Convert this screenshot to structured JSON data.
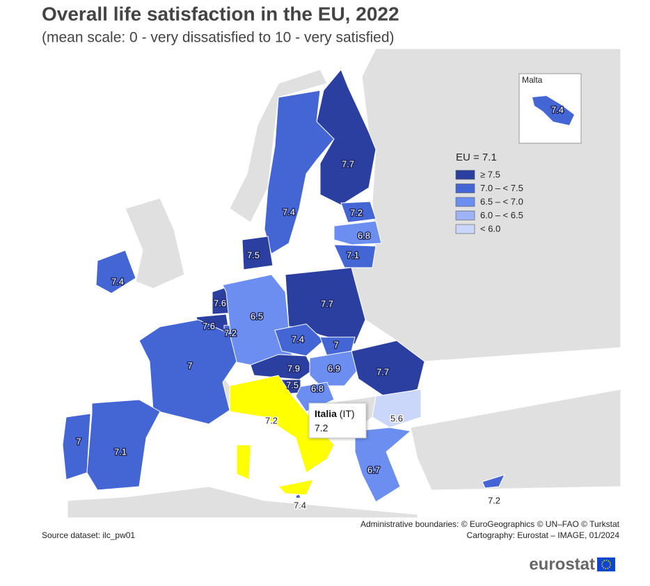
{
  "header": {
    "title": "Overall life satisfaction in the EU, 2022",
    "subtitle": "(mean scale: 0 - very dissatisfied to 10 - very satisfied)"
  },
  "legend": {
    "title": "EU = 7.1",
    "classes": [
      {
        "label": "≥ 7.5",
        "color": "#2b3fa0"
      },
      {
        "label": "7.0 – < 7.5",
        "color": "#4466d4"
      },
      {
        "label": "6.5 – < 7.0",
        "color": "#6b8ef0"
      },
      {
        "label": "6.0 – < 6.5",
        "color": "#9db3f5"
      },
      {
        "label": "< 6.0",
        "color": "#cbd7fa"
      }
    ]
  },
  "regions": [
    {
      "value": 7.7,
      "color": "#2b3fa0"
    },
    {
      "value": 7.4,
      "color": "#4466d4"
    },
    {
      "value": 7.2,
      "color": "#4466d4"
    },
    {
      "value": 6.8,
      "color": "#6b8ef0"
    },
    {
      "value": 7.1,
      "color": "#4466d4"
    },
    {
      "value": 7.5,
      "color": "#2b3fa0"
    },
    {
      "value": 7.4,
      "color": "#4466d4"
    },
    {
      "value": 7.6,
      "color": "#2b3fa0"
    },
    {
      "value": 7.6,
      "color": "#2b3fa0"
    },
    {
      "value": 7.2,
      "color": "#4466d4"
    },
    {
      "value": 6.5,
      "color": "#6b8ef0"
    },
    {
      "value": 7.7,
      "color": "#2b3fa0"
    },
    {
      "value": 7.4,
      "color": "#4466d4"
    },
    {
      "value": 7,
      "color": "#4466d4"
    },
    {
      "value": 7.9,
      "color": "#2b3fa0"
    },
    {
      "value": 6.9,
      "color": "#6b8ef0"
    },
    {
      "value": 7.7,
      "color": "#2b3fa0"
    },
    {
      "value": 7.5,
      "color": "#2b3fa0"
    },
    {
      "value": 6.8,
      "color": "#6b8ef0"
    },
    {
      "value": 7,
      "color": "#4466d4"
    },
    {
      "value": 7.2,
      "color": "#ffff00"
    },
    {
      "value": 5.6,
      "color": "#cbd7fa"
    },
    {
      "value": 7,
      "color": "#4466d4"
    },
    {
      "value": 7.1,
      "color": "#4466d4"
    },
    {
      "value": 6.7,
      "color": "#6b8ef0"
    },
    {
      "value": 7.2,
      "color": "#4466d4"
    },
    {
      "value": 7.4,
      "color": "#4466d4"
    }
  ],
  "malta_inset": {
    "title": "Malta",
    "value": 7.4
  },
  "tooltip": {
    "name": "Italia",
    "code": "(IT)",
    "value": 7.2
  },
  "footer": {
    "source": "Source dataset: ilc_pw01",
    "boundaries": "Administrative boundaries: © EuroGeographics © UN–FAO © Turkstat",
    "cartography": "Cartography: Eurostat – IMAGE, 01/2024",
    "logo": "eurostat"
  }
}
